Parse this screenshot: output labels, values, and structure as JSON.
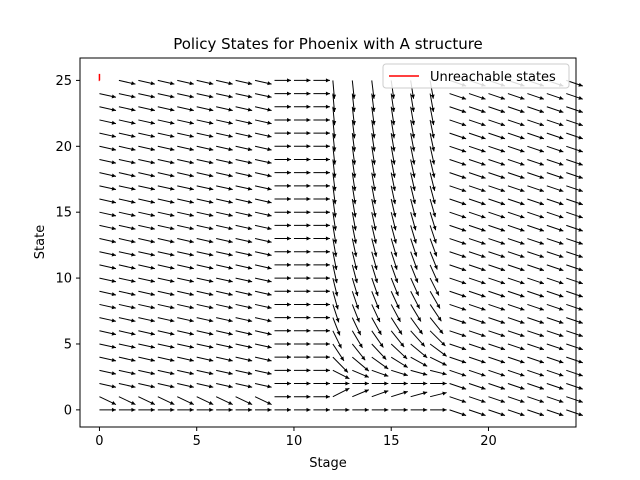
{
  "chart_data": {
    "type": "quiver",
    "title": "Policy States for Phoenix with A structure",
    "xlabel": "Stage",
    "ylabel": "State",
    "xlim": [
      -1,
      24.5
    ],
    "ylim": [
      -1.3,
      26.7
    ],
    "xticks": [
      0,
      5,
      10,
      15,
      20
    ],
    "yticks": [
      0,
      5,
      10,
      15,
      20,
      25
    ],
    "grid": false,
    "legend_position": "top-right",
    "legend": [
      {
        "label": "Unreachable states",
        "color": "#ff0000"
      }
    ],
    "series": [
      {
        "name": "Unreachable states",
        "color": "#ff0000",
        "x": [
          0,
          0,
          0.01
        ],
        "y": [
          25.5,
          25.0,
          25.0
        ]
      }
    ],
    "quiver": {
      "stages": [
        0,
        24
      ],
      "states": [
        0,
        25
      ],
      "regions": [
        {
          "stages": [
            0,
            8
          ],
          "states": [
            2,
            25
          ],
          "slope": -0.33
        },
        {
          "stages": [
            0,
            8
          ],
          "states": [
            1,
            1
          ],
          "slope": -0.7
        },
        {
          "stages": [
            0,
            10
          ],
          "states": [
            0,
            0
          ],
          "slope": 0
        },
        {
          "stages": [
            9,
            11
          ],
          "states": [
            1,
            25
          ],
          "slope": 0
        },
        {
          "stages": [
            12,
            17
          ],
          "states": [
            1,
            25
          ],
          "slope": "converging"
        },
        {
          "stages": [
            18,
            24
          ],
          "states": [
            0,
            25
          ],
          "slope": -0.5
        }
      ]
    },
    "arrow_color": "#000000"
  }
}
